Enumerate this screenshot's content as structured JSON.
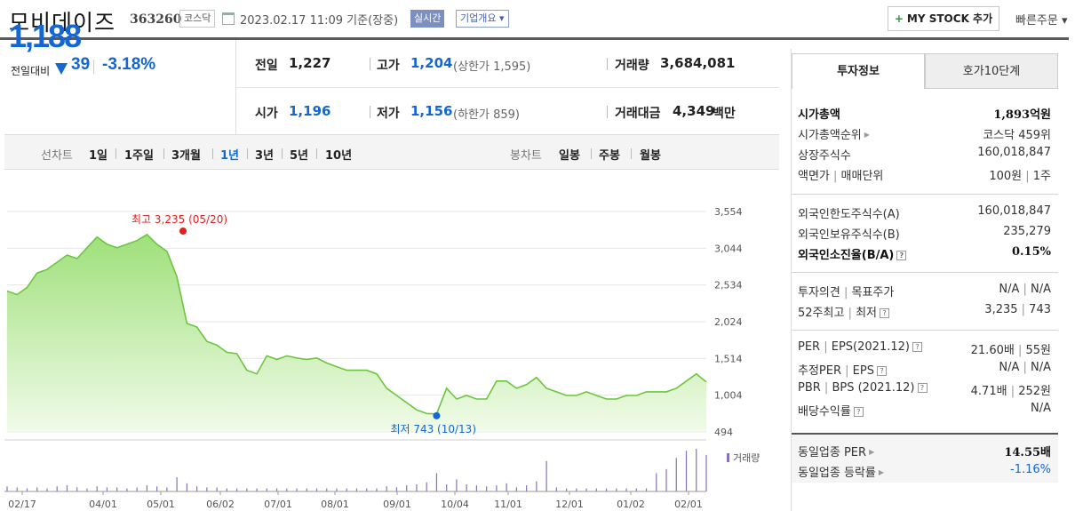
{
  "header": {
    "company_name": "모비데이즈",
    "code": "363260",
    "market": "코스닥",
    "datetime": "2023.02.17 11:09  기준(장중)",
    "live": "실시간",
    "overview": "기업개요 ▾",
    "mystock": "MY STOCK 추가",
    "quick_order": "빠른주문 ▾"
  },
  "quote": {
    "price": "1,188",
    "prev_label": "전일대비",
    "change": "39",
    "change_pct": "-3.18%",
    "prev_close_label": "전일",
    "prev_close": "1,227",
    "high_label": "고가",
    "high": "1,204",
    "upper_limit": "(상한가 1,595)",
    "volume_label": "거래량",
    "volume": "3,684,081",
    "open_label": "시가",
    "open": "1,196",
    "low_label": "저가",
    "low": "1,156",
    "lower_limit": "(하한가 859)",
    "amount_label": "거래대금",
    "amount": "4,349",
    "amount_unit": "백만"
  },
  "period_bar": {
    "line_label": "선차트",
    "line_items": [
      "1일",
      "1주일",
      "3개월",
      "1년",
      "3년",
      "5년",
      "10년"
    ],
    "active_index": 3,
    "candle_label": "봉차트",
    "candle_items": [
      "일봉",
      "주봉",
      "월봉"
    ]
  },
  "chart_data": {
    "type": "area",
    "y_ticks": [
      "3,554",
      "3,044",
      "2,534",
      "2,024",
      "1,514",
      "1,004",
      "494"
    ],
    "ylim": [
      494,
      3554
    ],
    "x_ticks": [
      "02/17",
      "04/01",
      "05/01",
      "06/02",
      "07/01",
      "08/01",
      "09/01",
      "10/04",
      "11/01",
      "12/01",
      "01/02",
      "02/01"
    ],
    "max_label": "최고 3,235 (05/20)",
    "min_label": "최저 743 (10/13)",
    "volume_legend": "거래량",
    "series": [
      {
        "values": [
          2450,
          2400,
          2500,
          2700,
          2750,
          2850,
          2950,
          2900,
          3050,
          3200,
          3100,
          3050,
          3100,
          3150,
          3235,
          3100,
          3000,
          2650,
          2000,
          1950,
          1750,
          1700,
          1600,
          1580,
          1350,
          1300,
          1550,
          1500,
          1550,
          1520,
          1500,
          1520,
          1450,
          1400,
          1350,
          1350,
          1350,
          1300,
          1100,
          1000,
          900,
          800,
          750,
          743,
          1100,
          950,
          1000,
          950,
          950,
          1200,
          1200,
          1100,
          1150,
          1250,
          1100,
          1050,
          1000,
          1000,
          1050,
          1000,
          950,
          950,
          1000,
          1000,
          1050,
          1050,
          1050,
          1100,
          1200,
          1300,
          1188
        ]
      },
      {
        "values": [
          500,
          400,
          300,
          400,
          300,
          500,
          600,
          400,
          300,
          500,
          400,
          400,
          300,
          400,
          600,
          500,
          400,
          1400,
          800,
          500,
          400,
          400,
          300,
          300,
          300,
          300,
          300,
          300,
          300,
          300,
          300,
          300,
          300,
          300,
          300,
          300,
          300,
          300,
          500,
          400,
          600,
          700,
          900,
          1800,
          700,
          1200,
          700,
          600,
          500,
          600,
          800,
          400,
          600,
          1000,
          3000,
          400,
          300,
          300,
          300,
          300,
          300,
          300,
          300,
          300,
          300,
          1800,
          2200,
          3300,
          4000,
          4200,
          3600
        ]
      }
    ]
  },
  "right_panel": {
    "tab_invest": "투자정보",
    "tab_orderbook": "호가10단계",
    "sec1": [
      {
        "k": "시가총액",
        "v": "1,893억원"
      },
      {
        "k": "시가총액순위",
        "v": "코스닥 459위"
      },
      {
        "k": "상장주식수",
        "v": "160,018,847"
      },
      {
        "k": "액면가",
        "k2": "매매단위",
        "v": "100원",
        "v2": "1주"
      }
    ],
    "sec2": [
      {
        "k": "외국인한도주식수(A)",
        "v": "160,018,847"
      },
      {
        "k": "외국인보유주식수(B)",
        "v": "235,279"
      },
      {
        "k": "외국인소진율(B/A)",
        "v": "0.15%"
      }
    ],
    "sec3": [
      {
        "k": "투자의견",
        "k2": "목표주가",
        "v": "N/A",
        "v2": "N/A"
      },
      {
        "k": "52주최고",
        "k2": "최저",
        "v": "3,235",
        "v2": "743"
      }
    ],
    "sec4": [
      {
        "k": "PER",
        "k2": "EPS(2021.12)",
        "v": "21.60배",
        "v2": "55원"
      },
      {
        "k": "추정PER",
        "k2": "EPS",
        "v": "N/A",
        "v2": "N/A"
      },
      {
        "k": "PBR",
        "k2": "BPS (2021.12)",
        "v": "4.71배",
        "v2": "252원"
      },
      {
        "k": "배당수익률",
        "v": "N/A"
      }
    ],
    "sec5": [
      {
        "k": "동일업종 PER",
        "v": "14.55배"
      },
      {
        "k": "동일업종 등락률",
        "v": "-1.16%"
      }
    ],
    "qmark": "?"
  }
}
